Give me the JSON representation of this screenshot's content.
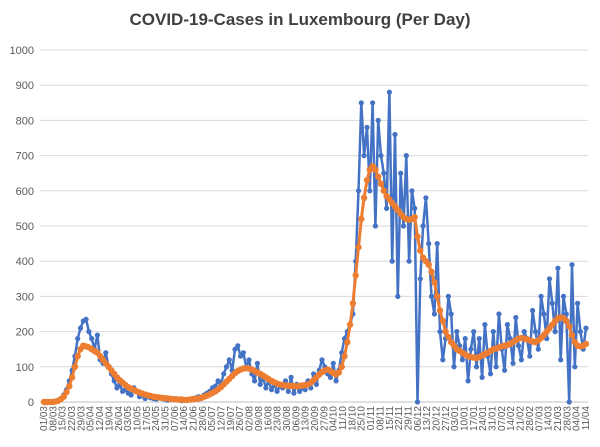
{
  "chart_data": {
    "type": "line",
    "title": "COVID-19-Cases in Luxembourg (Per Day)",
    "xlabel": "",
    "ylabel": "",
    "ylim": [
      0,
      1000
    ],
    "yticks": [
      "0",
      "100",
      "200",
      "300",
      "400",
      "500",
      "600",
      "700",
      "800",
      "900",
      "1000"
    ],
    "grid": true,
    "legend": "none",
    "x_tick_labels": [
      "01/03",
      "08/03",
      "15/03",
      "22/03",
      "29/03",
      "05/04",
      "12/04",
      "19/04",
      "26/04",
      "03/05",
      "10/05",
      "17/05",
      "24/05",
      "31/05",
      "07/06",
      "14/06",
      "21/06",
      "28/06",
      "05/07",
      "12/07",
      "19/07",
      "26/07",
      "02/08",
      "09/08",
      "16/08",
      "23/08",
      "30/08",
      "06/09",
      "13/09",
      "20/09",
      "27/09",
      "04/10",
      "11/10",
      "18/10",
      "25/10",
      "01/11",
      "08/11",
      "15/11",
      "22/11",
      "29/11",
      "06/12",
      "13/12",
      "20/12",
      "27/12",
      "03/01",
      "10/01",
      "17/01",
      "24/01",
      "31/01",
      "07/02",
      "14/02",
      "21/02",
      "28/02",
      "07/03",
      "14/03",
      "21/03",
      "28/03",
      "04/04",
      "11/04"
    ],
    "series": [
      {
        "name": "",
        "color": "#4472C4",
        "values": [
          0,
          0,
          0,
          0,
          2,
          5,
          10,
          20,
          35,
          60,
          90,
          130,
          180,
          210,
          230,
          235,
          200,
          180,
          150,
          190,
          120,
          110,
          140,
          100,
          80,
          60,
          40,
          50,
          30,
          35,
          25,
          20,
          40,
          30,
          15,
          20,
          10,
          15,
          12,
          10,
          8,
          12,
          10,
          8,
          5,
          10,
          6,
          8,
          5,
          4,
          6,
          5,
          8,
          10,
          12,
          15,
          10,
          20,
          25,
          30,
          40,
          45,
          60,
          50,
          80,
          100,
          120,
          90,
          150,
          160,
          130,
          140,
          100,
          120,
          80,
          60,
          110,
          50,
          70,
          40,
          60,
          35,
          50,
          30,
          45,
          40,
          60,
          30,
          70,
          25,
          50,
          30,
          40,
          35,
          60,
          40,
          80,
          50,
          90,
          120,
          100,
          80,
          70,
          110,
          60,
          90,
          140,
          180,
          200,
          220,
          250,
          400,
          600,
          850,
          700,
          780,
          600,
          850,
          500,
          800,
          700,
          650,
          550,
          880,
          400,
          760,
          300,
          650,
          500,
          700,
          400,
          600,
          550,
          0,
          350,
          500,
          580,
          450,
          300,
          250,
          450,
          200,
          120,
          180,
          300,
          250,
          100,
          200,
          160,
          120,
          180,
          60,
          150,
          200,
          100,
          180,
          70,
          220,
          130,
          80,
          200,
          100,
          250,
          150,
          90,
          220,
          180,
          110,
          240,
          160,
          120,
          200,
          180,
          130,
          260,
          200,
          150,
          300,
          250,
          180,
          350,
          280,
          200,
          380,
          120,
          300,
          250,
          0,
          390,
          100,
          280,
          200,
          150,
          210
        ]
      },
      {
        "name": "",
        "color": "#ED7D31",
        "values": [
          0,
          0,
          0,
          0,
          1,
          3,
          8,
          15,
          28,
          45,
          70,
          100,
          130,
          150,
          160,
          158,
          155,
          150,
          145,
          140,
          130,
          120,
          110,
          100,
          90,
          80,
          70,
          62,
          55,
          48,
          42,
          38,
          34,
          30,
          27,
          24,
          21,
          19,
          17,
          15,
          14,
          13,
          12,
          11,
          10,
          9,
          8,
          8,
          7,
          7,
          6,
          6,
          7,
          8,
          9,
          10,
          12,
          15,
          18,
          22,
          26,
          30,
          36,
          42,
          50,
          58,
          66,
          74,
          82,
          88,
          92,
          95,
          96,
          95,
          92,
          88,
          84,
          80,
          75,
          70,
          65,
          60,
          56,
          52,
          50,
          48,
          47,
          46,
          46,
          45,
          45,
          46,
          47,
          48,
          50,
          55,
          62,
          70,
          78,
          85,
          90,
          92,
          88,
          82,
          78,
          84,
          100,
          130,
          170,
          220,
          280,
          360,
          440,
          520,
          580,
          630,
          660,
          670,
          660,
          640,
          620,
          600,
          585,
          575,
          565,
          555,
          545,
          535,
          525,
          520,
          518,
          520,
          525,
          470,
          430,
          410,
          400,
          390,
          370,
          340,
          300,
          260,
          230,
          200,
          185,
          170,
          160,
          150,
          145,
          140,
          135,
          130,
          128,
          126,
          125,
          128,
          132,
          136,
          140,
          145,
          150,
          152,
          155,
          158,
          160,
          162,
          165,
          170,
          175,
          180,
          182,
          180,
          178,
          175,
          172,
          170,
          175,
          182,
          190,
          200,
          210,
          220,
          230,
          238,
          240,
          238,
          230,
          215,
          190,
          170,
          160,
          158,
          160,
          165
        ]
      }
    ]
  }
}
